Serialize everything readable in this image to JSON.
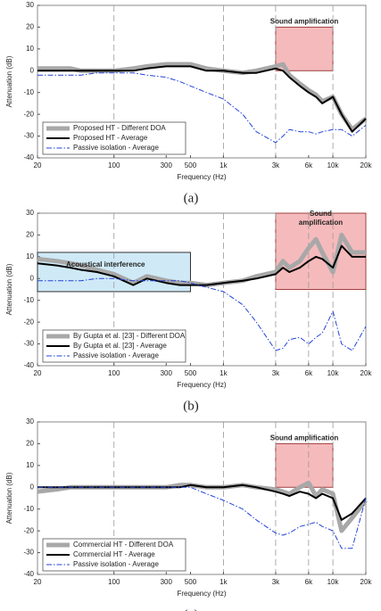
{
  "chart_data": [
    {
      "type": "line",
      "xscale": "log",
      "xlabel": "Frequency (Hz)",
      "ylabel": "Attenuation (dB)",
      "caption": "(a)",
      "xlim": [
        20,
        20000
      ],
      "ylim": [
        -40,
        30
      ],
      "xticks": [
        20,
        100,
        300,
        500,
        {
          "value": 1000,
          "label": "1k"
        },
        {
          "value": 3000,
          "label": "3k"
        },
        {
          "value": 6000,
          "label": "6k"
        },
        {
          "value": 10000,
          "label": "10k"
        },
        {
          "value": 20000,
          "label": "20k"
        }
      ],
      "yticks": [
        30,
        20,
        10,
        0,
        -10,
        -20,
        -30,
        -40
      ],
      "xgrid": [
        100,
        1000,
        3000,
        10000
      ],
      "legend": "lower left",
      "regions": [
        {
          "label": [
            "Sound amplification"
          ],
          "x": [
            3000,
            10000
          ],
          "y": [
            0,
            20
          ],
          "color": "#f2a3a6",
          "edge": "#a04040"
        }
      ],
      "x": [
        20,
        30,
        40,
        50,
        70,
        100,
        150,
        200,
        300,
        400,
        500,
        700,
        1000,
        1500,
        2000,
        3000,
        3500,
        4000,
        5000,
        6000,
        7000,
        8000,
        10000,
        12000,
        15000,
        20000
      ],
      "series": [
        {
          "name": "Proposed HT - Different DOA",
          "color": "#a8a8a8",
          "linewidth": 5,
          "linestyle": "solid",
          "values": [
            1,
            1,
            1,
            0,
            0,
            0,
            1,
            2,
            3,
            3,
            3,
            1,
            0,
            -1,
            0,
            2,
            3,
            -2,
            -6,
            -9,
            -11,
            -14,
            -12,
            -20,
            -27,
            -22
          ]
        },
        {
          "name": "Proposed HT - Average",
          "color": "#000000",
          "linewidth": 2,
          "linestyle": "solid",
          "values": [
            0,
            0,
            0,
            0,
            0,
            0,
            0,
            1,
            2,
            2,
            2,
            0,
            0,
            -1,
            -1,
            1,
            0,
            -3,
            -7,
            -10,
            -12,
            -15,
            -12,
            -20,
            -28,
            -22
          ]
        },
        {
          "name": "Passive isolation - Average",
          "color": "#2444d8",
          "linewidth": 1,
          "linestyle": "dashdot",
          "values": [
            -2,
            -2,
            -2,
            -2,
            -1,
            -1,
            -1,
            -2,
            -3,
            -5,
            -7,
            -10,
            -13,
            -20,
            -28,
            -33,
            -30,
            -27,
            -28,
            -28,
            -29,
            -28,
            -27,
            -27,
            -30,
            -25
          ]
        }
      ]
    },
    {
      "type": "line",
      "xscale": "log",
      "xlabel": "Frequency (Hz)",
      "ylabel": "Attenuation (dB)",
      "caption": "(b)",
      "xlim": [
        20,
        20000
      ],
      "ylim": [
        -40,
        30
      ],
      "xticks": [
        20,
        100,
        300,
        500,
        {
          "value": 1000,
          "label": "1k"
        },
        {
          "value": 3000,
          "label": "3k"
        },
        {
          "value": 6000,
          "label": "6k"
        },
        {
          "value": 10000,
          "label": "10k"
        },
        {
          "value": 20000,
          "label": "20k"
        }
      ],
      "yticks": [
        30,
        20,
        10,
        0,
        -10,
        -20,
        -30,
        -40
      ],
      "xgrid": [
        100,
        1000,
        3000,
        6000,
        10000
      ],
      "legend": "lower left",
      "regions": [
        {
          "label": [
            "Acoustical interference"
          ],
          "x": [
            20,
            500
          ],
          "y": [
            -6,
            12
          ],
          "color": "#bfe2f4",
          "edge": "#333333"
        },
        {
          "label": [
            "Sound",
            "amplification"
          ],
          "x": [
            3000,
            20000
          ],
          "y": [
            -5,
            30
          ],
          "color": "#f2a3a6",
          "edge": "#a04040"
        }
      ],
      "x": [
        20,
        30,
        40,
        50,
        70,
        100,
        150,
        200,
        300,
        400,
        500,
        700,
        1000,
        1500,
        2000,
        3000,
        3500,
        4000,
        5000,
        6000,
        7000,
        8000,
        10000,
        12000,
        15000,
        20000
      ],
      "series": [
        {
          "name": "By Gupta et al. [23] - Different DOA",
          "color": "#a8a8a8",
          "linewidth": 5,
          "linestyle": "solid",
          "values": [
            9,
            8,
            7,
            6,
            4,
            2,
            -2,
            1,
            -1,
            -2,
            -2,
            -3,
            -2,
            -1,
            1,
            3,
            8,
            5,
            8,
            14,
            18,
            12,
            3,
            20,
            12,
            12
          ]
        },
        {
          "name": "By Gupta et al. [23] - Average",
          "color": "#000000",
          "linewidth": 2,
          "linestyle": "solid",
          "values": [
            7,
            6,
            5,
            4,
            3,
            1,
            -3,
            0,
            -2,
            -3,
            -3,
            -3,
            -2,
            -1,
            0,
            2,
            5,
            3,
            5,
            8,
            10,
            9,
            5,
            15,
            10,
            10
          ]
        },
        {
          "name": "Passive isolation - Average",
          "color": "#2444d8",
          "linewidth": 1,
          "linestyle": "dashdot",
          "values": [
            -1,
            -1,
            -1,
            -1,
            0,
            0,
            -1,
            -1,
            -1,
            -1,
            -2,
            -4,
            -6,
            -12,
            -20,
            -33,
            -32,
            -28,
            -27,
            -30,
            -27,
            -25,
            -15,
            -30,
            -33,
            -22
          ]
        }
      ]
    },
    {
      "type": "line",
      "xscale": "log",
      "xlabel": "Frequency (Hz)",
      "ylabel": "Attenuation (dB)",
      "caption": "(c)",
      "xlim": [
        20,
        20000
      ],
      "ylim": [
        -40,
        30
      ],
      "xticks": [
        20,
        100,
        300,
        500,
        {
          "value": 1000,
          "label": "1k"
        },
        {
          "value": 3000,
          "label": "3k"
        },
        {
          "value": 6000,
          "label": "6k"
        },
        {
          "value": 10000,
          "label": "10k"
        },
        {
          "value": 20000,
          "label": "20k"
        }
      ],
      "yticks": [
        30,
        20,
        10,
        0,
        -10,
        -20,
        -30,
        -40
      ],
      "xgrid": [
        100,
        1000,
        3000,
        6000,
        10000
      ],
      "legend": "lower left",
      "regions": [
        {
          "label": [
            "Sound amplification"
          ],
          "x": [
            3000,
            10000
          ],
          "y": [
            0,
            20
          ],
          "color": "#f2a3a6",
          "edge": "#a04040"
        }
      ],
      "x": [
        20,
        30,
        40,
        50,
        70,
        100,
        150,
        200,
        300,
        400,
        500,
        700,
        1000,
        1500,
        2000,
        3000,
        3500,
        4000,
        5000,
        6000,
        7000,
        8000,
        10000,
        12000,
        15000,
        20000
      ],
      "series": [
        {
          "name": "Commercial HT - Different DOA",
          "color": "#a8a8a8",
          "linewidth": 5,
          "linestyle": "solid",
          "values": [
            -2,
            -1,
            0,
            0,
            0,
            0,
            0,
            0,
            0,
            1,
            1,
            0,
            0,
            1,
            0,
            -1,
            -2,
            -3,
            0,
            2,
            -4,
            -1,
            -3,
            -20,
            -14,
            -6
          ]
        },
        {
          "name": "Commercial HT - Average",
          "color": "#000000",
          "linewidth": 2,
          "linestyle": "solid",
          "values": [
            0,
            0,
            0,
            0,
            0,
            0,
            0,
            0,
            0,
            0,
            1,
            0,
            0,
            1,
            0,
            -2,
            -3,
            -4,
            -2,
            -3,
            -5,
            -3,
            -5,
            -15,
            -12,
            -5
          ]
        },
        {
          "name": "Passive isolation - Average",
          "color": "#2444d8",
          "linewidth": 1,
          "linestyle": "dashdot",
          "values": [
            0,
            0,
            0,
            0,
            0,
            0,
            0,
            0,
            0,
            0,
            0,
            -3,
            -6,
            -10,
            -15,
            -21,
            -22,
            -21,
            -18,
            -17,
            -16,
            -18,
            -20,
            -28,
            -28,
            -5
          ]
        }
      ]
    }
  ]
}
